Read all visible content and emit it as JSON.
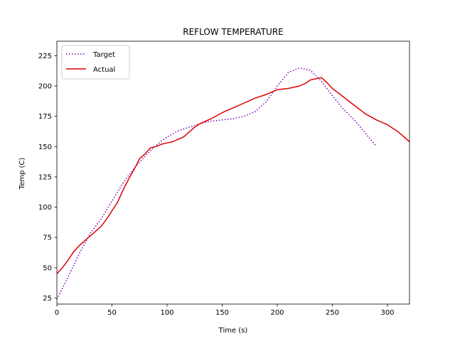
{
  "chart_data": {
    "type": "line",
    "title": "REFLOW TEMPERATURE",
    "xlabel": "Time (s)",
    "ylabel": "Temp (C)",
    "xlim": [
      0,
      320
    ],
    "ylim": [
      20,
      237
    ],
    "xticks": [
      0,
      50,
      100,
      150,
      200,
      250,
      300
    ],
    "yticks": [
      25,
      50,
      75,
      100,
      125,
      150,
      175,
      200,
      225
    ],
    "grid": false,
    "legend": "top-left",
    "series": [
      {
        "name": "Target",
        "color": "#7b00b4",
        "style": "dotted",
        "points": [
          [
            0,
            24
          ],
          [
            10,
            42
          ],
          [
            20,
            61
          ],
          [
            30,
            78
          ],
          [
            40,
            90
          ],
          [
            50,
            105
          ],
          [
            60,
            120
          ],
          [
            70,
            132
          ],
          [
            80,
            142
          ],
          [
            90,
            151
          ],
          [
            100,
            158
          ],
          [
            110,
            163
          ],
          [
            120,
            166
          ],
          [
            130,
            169
          ],
          [
            140,
            171
          ],
          [
            150,
            172
          ],
          [
            160,
            173
          ],
          [
            170,
            175
          ],
          [
            180,
            179
          ],
          [
            190,
            187
          ],
          [
            200,
            200
          ],
          [
            210,
            211
          ],
          [
            220,
            215
          ],
          [
            230,
            213
          ],
          [
            240,
            204
          ],
          [
            250,
            192
          ],
          [
            260,
            181
          ],
          [
            270,
            172
          ],
          [
            280,
            161
          ],
          [
            290,
            150
          ]
        ]
      },
      {
        "name": "Actual",
        "color": "#dd0000",
        "style": "solid",
        "points": [
          [
            0,
            45
          ],
          [
            5,
            50
          ],
          [
            10,
            56
          ],
          [
            15,
            63
          ],
          [
            20,
            68
          ],
          [
            25,
            72
          ],
          [
            30,
            76
          ],
          [
            35,
            80
          ],
          [
            40,
            84
          ],
          [
            45,
            90
          ],
          [
            50,
            97
          ],
          [
            55,
            104
          ],
          [
            60,
            114
          ],
          [
            65,
            123
          ],
          [
            70,
            131
          ],
          [
            75,
            140
          ],
          [
            80,
            144
          ],
          [
            85,
            149
          ],
          [
            90,
            150
          ],
          [
            95,
            152
          ],
          [
            100,
            153
          ],
          [
            105,
            154
          ],
          [
            110,
            156
          ],
          [
            115,
            158
          ],
          [
            120,
            162
          ],
          [
            125,
            166
          ],
          [
            130,
            169
          ],
          [
            135,
            171
          ],
          [
            140,
            173
          ],
          [
            150,
            178
          ],
          [
            160,
            182
          ],
          [
            170,
            186
          ],
          [
            180,
            190
          ],
          [
            190,
            193
          ],
          [
            195,
            195
          ],
          [
            200,
            197
          ],
          [
            210,
            198
          ],
          [
            220,
            200
          ],
          [
            225,
            202
          ],
          [
            230,
            205
          ],
          [
            235,
            206
          ],
          [
            240,
            207
          ],
          [
            245,
            203
          ],
          [
            250,
            198
          ],
          [
            260,
            191
          ],
          [
            270,
            184
          ],
          [
            280,
            177
          ],
          [
            290,
            172
          ],
          [
            300,
            168
          ],
          [
            310,
            162
          ],
          [
            320,
            154
          ]
        ]
      }
    ]
  }
}
